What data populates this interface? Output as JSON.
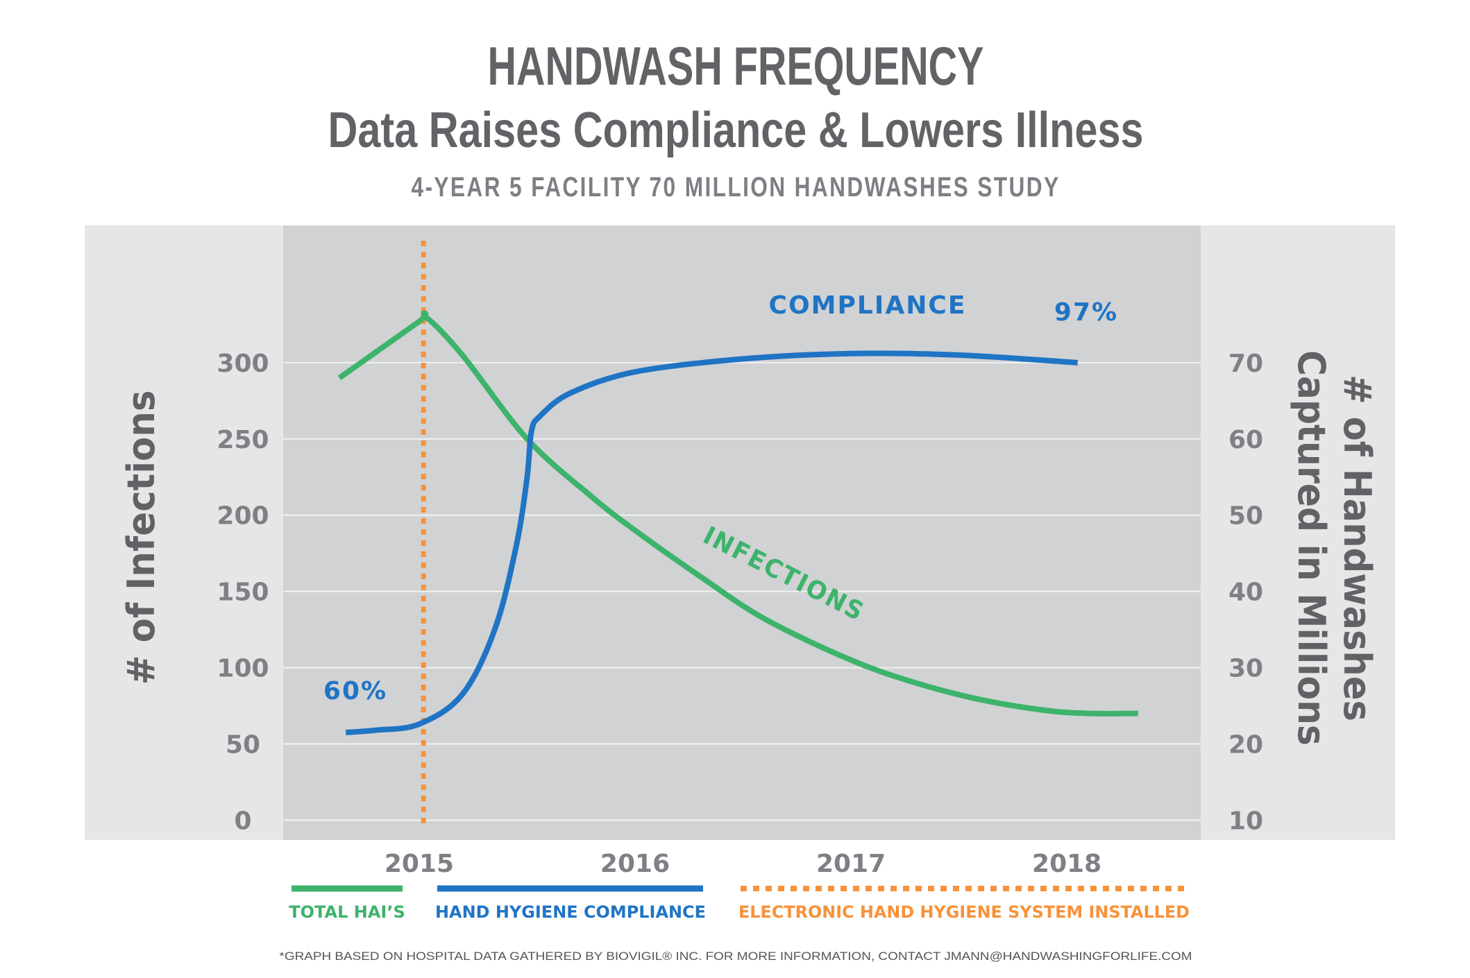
{
  "chart_data": {
    "type": "line",
    "title": "HANDWASH FREQUENCY",
    "subtitle": "Data Raises Compliance & Lowers Illness",
    "study_label": "4-YEAR 5 FACILITY 70 MILLION HANDWASHES STUDY",
    "ylabel_left": "# of Infections",
    "ylabel_right": [
      "# of Handwashes",
      "Captured in Millions"
    ],
    "x_ticks": [
      "2015",
      "2016",
      "2017",
      "2018"
    ],
    "x_tick_values": [
      2015,
      2016,
      2017,
      2018
    ],
    "xlim": [
      2014.37,
      2018.62
    ],
    "ylim_left": [
      -13,
      390
    ],
    "y_ticks_left": [
      "0",
      "50",
      "100",
      "150",
      "200",
      "250",
      "300"
    ],
    "y_tick_values_left": [
      0,
      50,
      100,
      150,
      200,
      250,
      300
    ],
    "ylim_right": [
      7.4,
      88
    ],
    "y_ticks_right": [
      "10",
      "20",
      "30",
      "40",
      "50",
      "60",
      "70"
    ],
    "y_tick_values_right": [
      10,
      20,
      30,
      40,
      50,
      60,
      70
    ],
    "grid": "horizontal",
    "event_line": {
      "x": 2015.02,
      "label": "ELECTRONIC HAND HYGIENE SYSTEM INSTALLED",
      "color": "#f7923a"
    },
    "series": [
      {
        "name": "TOTAL HAI’S",
        "axis": "left",
        "color": "#3db36b",
        "annotation": "INFECTIONS",
        "x": [
          2014.63,
          2015.0,
          2015.03,
          2015.2,
          2015.5,
          2015.8,
          2016.0,
          2016.3,
          2016.6,
          2017.0,
          2017.3,
          2017.6,
          2017.9,
          2018.1,
          2018.33
        ],
        "y": [
          290,
          327,
          330,
          305,
          250,
          212,
          190,
          160,
          132,
          105,
          90,
          79,
          72,
          70,
          70
        ]
      },
      {
        "name": "HAND HYGIENE COMPLIANCE",
        "axis": "right",
        "color": "#1f74c4",
        "annotation": "COMPLIANCE",
        "x": [
          2014.66,
          2014.8,
          2015.0,
          2015.2,
          2015.35,
          2015.45,
          2015.5,
          2015.52,
          2015.56,
          2015.7,
          2016.0,
          2016.5,
          2017.0,
          2017.5,
          2018.05
        ],
        "y": [
          21.5,
          21.8,
          22.6,
          26.5,
          35,
          46,
          55,
          61,
          63,
          66,
          68.8,
          70.5,
          71.2,
          71,
          70
        ],
        "start_label": "60%",
        "end_label": "97%"
      }
    ],
    "legend_position": "bottom",
    "footnote": "*GRAPH BASED ON HOSPITAL DATA GATHERED BY BIOVIGIL® INC.  FOR MORE INFORMATION, CONTACT JMANN@HANDWASHINGFORLIFE.COM"
  }
}
